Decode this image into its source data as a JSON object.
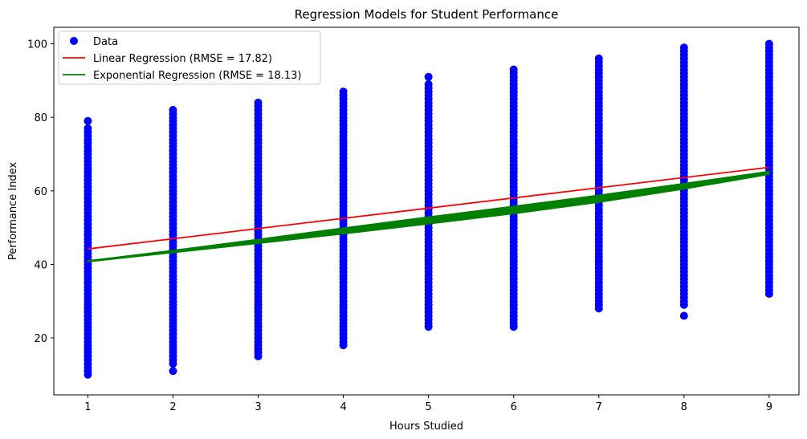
{
  "chart_data": {
    "type": "scatter",
    "title": "Regression Models for Student Performance",
    "xlabel": "Hours Studied",
    "ylabel": "Performance Index",
    "xlim": [
      0.6,
      9.35
    ],
    "ylim": [
      4.5,
      104.5
    ],
    "xticks": [
      1,
      2,
      3,
      4,
      5,
      6,
      7,
      8,
      9
    ],
    "yticks": [
      20,
      40,
      60,
      80,
      100
    ],
    "grid": false,
    "legend_position": "upper-left",
    "scatter": {
      "name": "Data",
      "color": "#0000ff",
      "columns": [
        {
          "x": 1,
          "min": 10,
          "max": 77,
          "outliers": [
            79
          ]
        },
        {
          "x": 2,
          "min": 13,
          "max": 82,
          "outliers": [
            11
          ]
        },
        {
          "x": 3,
          "min": 15,
          "max": 84,
          "outliers": []
        },
        {
          "x": 4,
          "min": 18,
          "max": 87,
          "outliers": []
        },
        {
          "x": 5,
          "min": 23,
          "max": 89,
          "outliers": [
            91
          ]
        },
        {
          "x": 6,
          "min": 23,
          "max": 93,
          "outliers": []
        },
        {
          "x": 7,
          "min": 28,
          "max": 96,
          "outliers": []
        },
        {
          "x": 8,
          "min": 29,
          "max": 99,
          "outliers": [
            26
          ]
        },
        {
          "x": 9,
          "min": 32,
          "max": 100,
          "outliers": []
        }
      ]
    },
    "series": [
      {
        "name": "Linear Regression (RMSE = 17.82)",
        "color": "#ff0000",
        "kind": "line",
        "x": [
          1,
          9
        ],
        "y": [
          44.2,
          66.4
        ]
      },
      {
        "name": "Exponential Regression (RMSE = 18.13)",
        "color": "#008000",
        "kind": "band",
        "x": [
          1,
          2,
          3,
          4,
          5,
          6,
          7,
          8,
          9
        ],
        "y_low": [
          40.7,
          43.2,
          45.7,
          48.3,
          51.0,
          53.8,
          56.9,
          60.5,
          64.5
        ],
        "y_high": [
          41.0,
          43.8,
          46.8,
          49.9,
          52.9,
          55.8,
          58.8,
          62.0,
          65.3
        ]
      }
    ]
  }
}
